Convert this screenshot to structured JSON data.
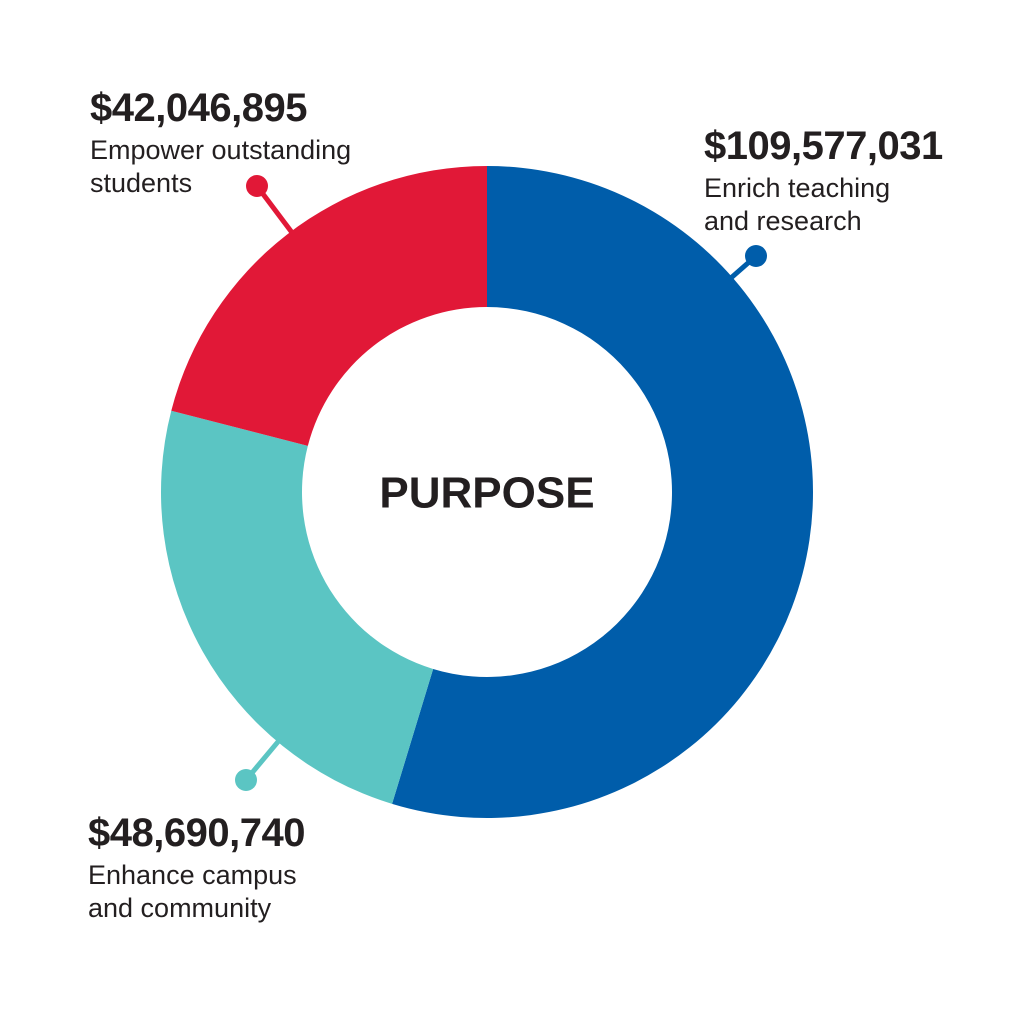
{
  "chart_data": {
    "type": "pie",
    "variant": "donut",
    "center_label": "PURPOSE",
    "slices": [
      {
        "amount_label": "$109,577,031",
        "value": 109577031,
        "desc_lines": [
          "Enrich teaching",
          "and research"
        ],
        "color": "#005DAA"
      },
      {
        "amount_label": "$48,690,740",
        "value": 48690740,
        "desc_lines": [
          "Enhance campus",
          "and community"
        ],
        "color": "#5BC5C3"
      },
      {
        "amount_label": "$42,046,895",
        "value": 42046895,
        "desc_lines": [
          "Empower outstanding",
          "students"
        ],
        "color": "#E11837"
      }
    ]
  }
}
